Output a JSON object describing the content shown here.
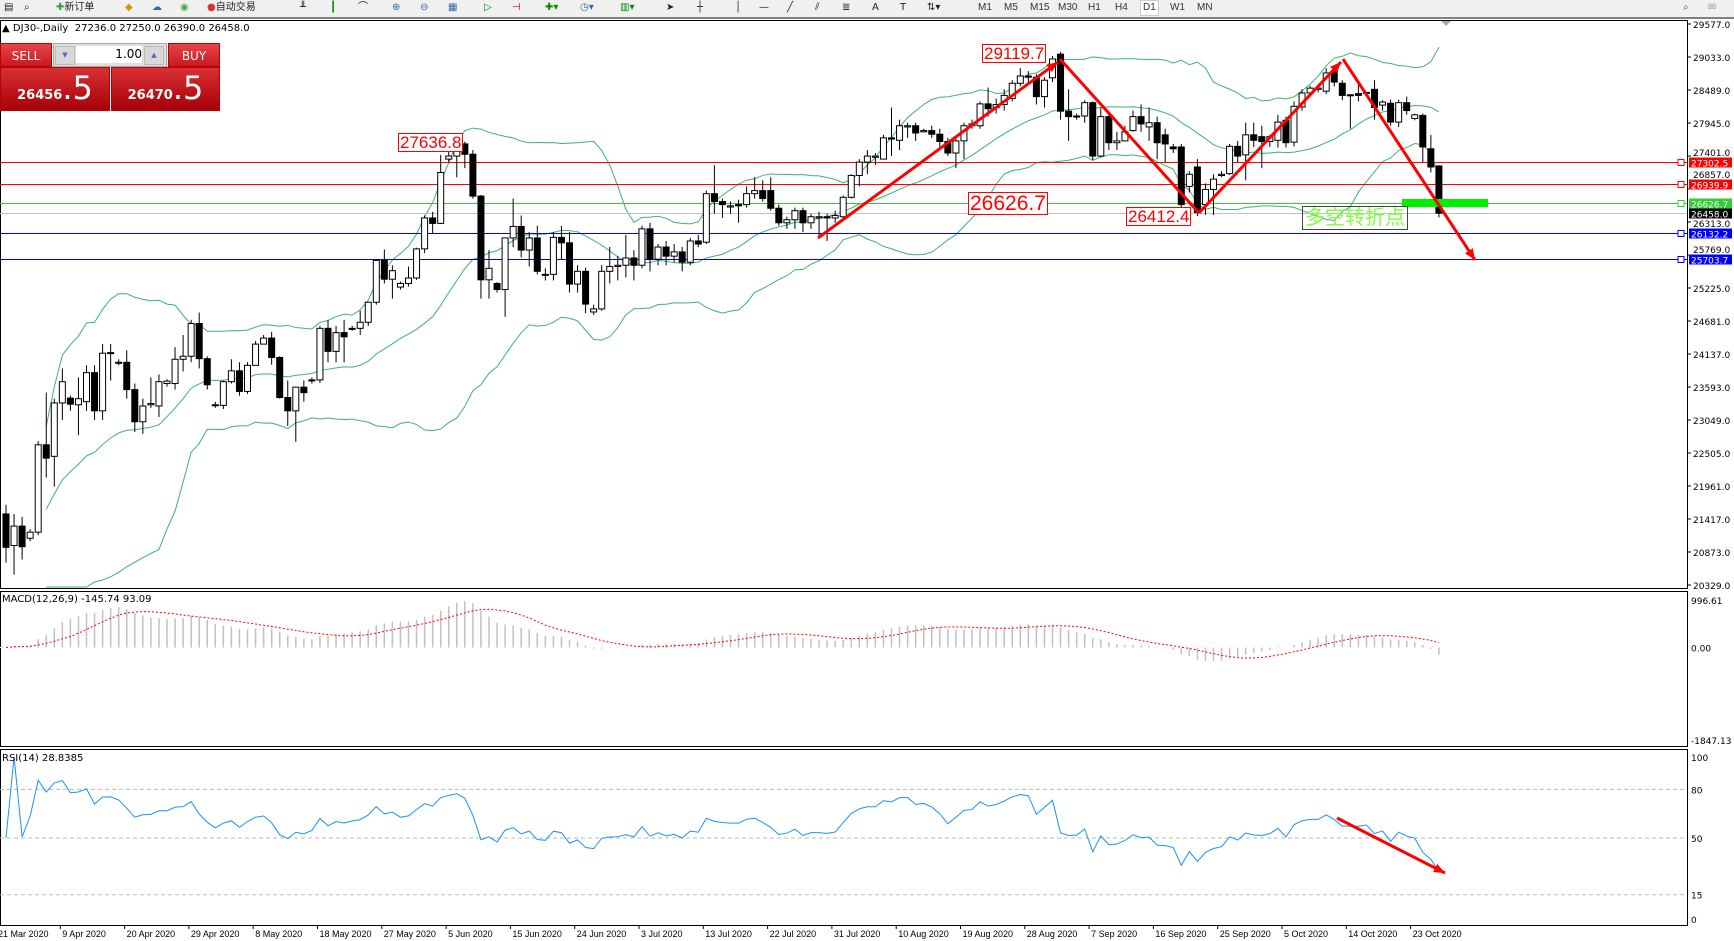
{
  "toolbar": {
    "new_order": "新订单",
    "auto_trading": "自动交易",
    "timeframes": [
      "M1",
      "M5",
      "M15",
      "M30",
      "H1",
      "H4",
      "D1",
      "W1",
      "MN"
    ],
    "active_timeframe": "D1"
  },
  "chart_header": {
    "symbol": "DJ30-,Daily",
    "ohlc": "27236.0 27250.0 26390.0 26458.0"
  },
  "trade_panel": {
    "sell_label": "SELL",
    "buy_label": "BUY",
    "lot": "1.00",
    "sell_price_main": "26456",
    "sell_price_big": ".5",
    "buy_price_main": "26470",
    "buy_price_big": ".5"
  },
  "annotations": {
    "peak1": "27636.8",
    "peak2": "29119.7",
    "level": "26626.7",
    "trough": "26412.4",
    "turning_point": "多空转折点"
  },
  "indicators": {
    "macd_label": "MACD(12,26,9) -145.74 93.09",
    "rsi_label": "RSI(14) 28.8385"
  },
  "chart_data": {
    "type": "candlestick",
    "price_axis_ticks": [
      "29577.0",
      "29033.0",
      "28489.0",
      "27945.0",
      "27401.0",
      "26857.0",
      "26313.0",
      "25769.0",
      "25225.0",
      "24681.0",
      "24137.0",
      "23593.0",
      "23049.0",
      "22505.0",
      "21961.0",
      "21417.0",
      "20873.0",
      "20329.0"
    ],
    "price_range": [
      20329.0,
      29577.0
    ],
    "macd_axis_ticks": [
      "996.61",
      "0.00",
      "-1847.13"
    ],
    "macd_range": [
      -1847.13,
      996.61
    ],
    "rsi_axis_ticks": [
      "100",
      "80",
      "50",
      "15",
      "0"
    ],
    "date_labels": [
      "21 Mar 2020",
      "9 Apr 2020",
      "20 Apr 2020",
      "29 Apr 2020",
      "8 May 2020",
      "18 May 2020",
      "27 May 2020",
      "5 Jun 2020",
      "15 Jun 2020",
      "24 Jun 2020",
      "3 Jul 2020",
      "13 Jul 2020",
      "22 Jul 2020",
      "31 Jul 2020",
      "10 Aug 2020",
      "19 Aug 2020",
      "28 Aug 2020",
      "7 Sep 2020",
      "16 Sep 2020",
      "25 Sep 2020",
      "5 Oct 2020",
      "14 Oct 2020",
      "23 Oct 2020"
    ],
    "horizontal_levels": [
      {
        "price": 27302.5,
        "label": "27302.5",
        "color": "#ff0000"
      },
      {
        "price": 26939.9,
        "label": "26939.9",
        "color": "#ff0000"
      },
      {
        "price": 26626.7,
        "label": "26626.7",
        "color": "#33cc33"
      },
      {
        "price": 26458.0,
        "label": "26458.0",
        "color": "#000000"
      },
      {
        "price": 26132.2,
        "label": "26132.2",
        "color": "#0000ff"
      },
      {
        "price": 25703.7,
        "label": "25703.7",
        "color": "#0000ff"
      }
    ],
    "colors": {
      "bull": "#ffffff",
      "bear": "#000000",
      "bollinger": "#3cb371",
      "macd_hist": "#c0c0c0",
      "macd_signal": "#ff0000",
      "rsi": "#1e90ff",
      "arrow": "#ff0000",
      "turning_bar": "#00ee00"
    },
    "indicators": {
      "bollinger": [
        20,
        2
      ],
      "macd": [
        12,
        26,
        9
      ],
      "rsi": 14,
      "rsi_levels": [
        80,
        50,
        15
      ]
    },
    "candles_ohlc": [
      [
        21500,
        21650,
        20700,
        20950
      ],
      [
        20980,
        21500,
        20500,
        21300
      ],
      [
        21300,
        21450,
        20750,
        20960
      ],
      [
        21100,
        21250,
        21050,
        21200
      ],
      [
        21200,
        22700,
        21150,
        22640
      ],
      [
        22640,
        23500,
        22100,
        22420
      ],
      [
        22450,
        23400,
        21950,
        23330
      ],
      [
        23330,
        23900,
        23050,
        23680
      ],
      [
        23410,
        23450,
        23200,
        23310
      ],
      [
        23300,
        23750,
        22800,
        23400
      ],
      [
        23350,
        23950,
        23200,
        23830
      ],
      [
        23830,
        23950,
        23050,
        23200
      ],
      [
        23200,
        24300,
        23050,
        24150
      ],
      [
        24150,
        24300,
        23700,
        24160
      ],
      [
        24000,
        24050,
        23950,
        24000
      ],
      [
        24000,
        24200,
        23400,
        23550
      ],
      [
        23550,
        23650,
        22850,
        23020
      ],
      [
        23020,
        23400,
        22820,
        23280
      ],
      [
        23300,
        23750,
        23250,
        23320
      ],
      [
        23280,
        23800,
        23100,
        23680
      ],
      [
        23650,
        23720,
        23600,
        23690
      ],
      [
        23650,
        24250,
        23550,
        24050
      ],
      [
        24050,
        24450,
        23850,
        24100
      ],
      [
        24100,
        24700,
        24000,
        24640
      ],
      [
        24640,
        24820,
        23900,
        24060
      ],
      [
        24060,
        24100,
        23550,
        23630
      ],
      [
        23300,
        23350,
        23250,
        23300
      ],
      [
        23290,
        23700,
        23230,
        23680
      ],
      [
        23680,
        24050,
        23650,
        23860
      ],
      [
        23860,
        24000,
        23450,
        23520
      ],
      [
        23520,
        24000,
        23480,
        23950
      ],
      [
        23950,
        24350,
        23950,
        24300
      ],
      [
        24300,
        24450,
        24300,
        24400
      ],
      [
        24400,
        24500,
        23960,
        24080
      ],
      [
        24080,
        24100,
        23400,
        23420
      ],
      [
        23420,
        23700,
        22950,
        23200
      ],
      [
        23200,
        23600,
        22690,
        23590
      ],
      [
        23590,
        23700,
        23350,
        23500
      ],
      [
        23700,
        23750,
        23650,
        23710
      ],
      [
        23710,
        24600,
        23660,
        24560
      ],
      [
        24560,
        24700,
        24000,
        24180
      ],
      [
        24180,
        24600,
        24000,
        24490
      ],
      [
        24490,
        24700,
        24000,
        24420
      ],
      [
        24560,
        24600,
        24520,
        24560
      ],
      [
        24560,
        24850,
        24450,
        24660
      ],
      [
        24660,
        25000,
        24600,
        24990
      ],
      [
        24990,
        25700,
        24950,
        25680
      ],
      [
        25680,
        25860,
        25300,
        25370
      ],
      [
        25370,
        25600,
        25050,
        25510
      ],
      [
        25240,
        25330,
        25200,
        25300
      ],
      [
        25300,
        25580,
        25250,
        25390
      ],
      [
        25390,
        25890,
        25360,
        25870
      ],
      [
        25870,
        26420,
        25800,
        26380
      ],
      [
        26380,
        26480,
        26120,
        26290
      ],
      [
        26290,
        27420,
        26280,
        27130
      ],
      [
        27350,
        27500,
        27300,
        27400
      ],
      [
        27400,
        27600,
        27050,
        27590
      ],
      [
        27600,
        27636.8,
        27200,
        27430
      ],
      [
        27430,
        27500,
        26700,
        26740
      ],
      [
        26740,
        26760,
        25050,
        25360
      ],
      [
        25360,
        25850,
        25050,
        25550
      ],
      [
        25300,
        25320,
        25150,
        25200
      ],
      [
        25200,
        26050,
        24750,
        26050
      ],
      [
        26050,
        26700,
        25900,
        26240
      ],
      [
        26240,
        26420,
        25730,
        25850
      ],
      [
        25850,
        26150,
        25580,
        26050
      ],
      [
        26050,
        26250,
        25450,
        25500
      ],
      [
        25450,
        25550,
        25350,
        25450
      ],
      [
        25450,
        26150,
        25350,
        26060
      ],
      [
        26060,
        26250,
        25700,
        25970
      ],
      [
        25970,
        26150,
        25150,
        25290
      ],
      [
        25290,
        25600,
        25150,
        25500
      ],
      [
        25500,
        25560,
        24810,
        24960
      ],
      [
        24830,
        24950,
        24780,
        24880
      ],
      [
        24880,
        25600,
        24850,
        25500
      ],
      [
        25500,
        25900,
        25300,
        25580
      ],
      [
        25580,
        25750,
        25350,
        25600
      ],
      [
        25600,
        26100,
        25400,
        25720
      ],
      [
        25720,
        25850,
        25350,
        25600
      ],
      [
        25600,
        26250,
        25550,
        26200
      ],
      [
        26200,
        26300,
        25500,
        25700
      ],
      [
        25700,
        25950,
        25600,
        25900
      ],
      [
        25900,
        26000,
        25600,
        25750
      ],
      [
        25750,
        25950,
        25650,
        25820
      ],
      [
        25820,
        25900,
        25500,
        25650
      ],
      [
        25650,
        26050,
        25600,
        26000
      ],
      [
        26000,
        26100,
        25900,
        25950
      ],
      [
        25980,
        26830,
        25950,
        26780
      ],
      [
        26780,
        27250,
        26450,
        26650
      ],
      [
        26650,
        26700,
        26380,
        26600
      ],
      [
        26560,
        26650,
        26450,
        26580
      ],
      [
        26600,
        26680,
        26300,
        26580
      ],
      [
        26600,
        26900,
        26550,
        26780
      ],
      [
        26780,
        27050,
        26700,
        26830
      ],
      [
        26830,
        27000,
        26650,
        26700
      ],
      [
        26830,
        27050,
        26500,
        26540
      ],
      [
        26540,
        26600,
        26250,
        26300
      ],
      [
        26300,
        26400,
        26200,
        26350
      ],
      [
        26350,
        26550,
        26200,
        26500
      ],
      [
        26500,
        26550,
        26150,
        26300
      ],
      [
        26300,
        26450,
        26200,
        26400
      ],
      [
        26380,
        26480,
        26050,
        26400
      ],
      [
        26400,
        26450,
        26000,
        26380
      ],
      [
        26380,
        26500,
        26300,
        26420
      ],
      [
        26400,
        26750,
        26350,
        26720
      ],
      [
        26720,
        27100,
        26700,
        27080
      ],
      [
        27080,
        27350,
        26900,
        27300
      ],
      [
        27300,
        27500,
        27100,
        27400
      ],
      [
        27380,
        27450,
        27250,
        27400
      ],
      [
        27350,
        27750,
        27350,
        27700
      ],
      [
        27700,
        28200,
        27400,
        27680
      ],
      [
        27660,
        28000,
        27500,
        27900
      ],
      [
        27880,
        27950,
        27700,
        27900
      ],
      [
        27900,
        27950,
        27650,
        27780
      ],
      [
        27800,
        27850,
        27790,
        27820
      ],
      [
        27820,
        27900,
        27700,
        27760
      ],
      [
        27760,
        27850,
        27550,
        27640
      ],
      [
        27640,
        27700,
        27400,
        27450
      ],
      [
        27450,
        27700,
        27200,
        27650
      ],
      [
        27650,
        27950,
        27350,
        27900
      ],
      [
        27900,
        28000,
        27850,
        27930
      ],
      [
        27900,
        28300,
        27850,
        28260
      ],
      [
        28260,
        28530,
        28050,
        28180
      ],
      [
        28200,
        28350,
        28100,
        28250
      ],
      [
        28250,
        28500,
        28150,
        28400
      ],
      [
        28350,
        28650,
        28300,
        28600
      ],
      [
        28600,
        28850,
        28550,
        28720
      ],
      [
        28720,
        28800,
        28600,
        28700
      ],
      [
        28700,
        28750,
        28250,
        28380
      ],
      [
        28380,
        28700,
        28200,
        28650
      ],
      [
        28690,
        29050,
        28620,
        29000
      ],
      [
        29080,
        29119.7,
        28000,
        28140
      ],
      [
        28140,
        28500,
        27650,
        28050
      ],
      [
        28050,
        28100,
        28000,
        28060
      ],
      [
        28060,
        28320,
        27950,
        28280
      ],
      [
        28280,
        28300,
        27330,
        27400
      ],
      [
        27400,
        28200,
        27380,
        28050
      ],
      [
        28050,
        28100,
        27500,
        27620
      ],
      [
        27620,
        27800,
        27500,
        27650
      ],
      [
        27650,
        27900,
        27700,
        27800
      ],
      [
        27820,
        28150,
        27800,
        28050
      ],
      [
        28050,
        28250,
        27800,
        27930
      ],
      [
        27880,
        28200,
        27650,
        27950
      ],
      [
        27950,
        28050,
        27350,
        27620
      ],
      [
        27750,
        27850,
        27300,
        27600
      ],
      [
        27550,
        27600,
        27450,
        27520
      ],
      [
        27550,
        27600,
        26480,
        26600
      ],
      [
        26900,
        27150,
        26800,
        27100
      ],
      [
        27220,
        27350,
        26412.4,
        26470
      ],
      [
        26600,
        26950,
        26430,
        26850
      ],
      [
        26850,
        27100,
        26430,
        27020
      ],
      [
        27080,
        27150,
        27050,
        27100
      ],
      [
        27110,
        27600,
        27090,
        27560
      ],
      [
        27560,
        27650,
        27300,
        27400
      ],
      [
        27420,
        27950,
        27000,
        27750
      ],
      [
        27750,
        27950,
        27550,
        27660
      ],
      [
        27720,
        27900,
        27200,
        27640
      ],
      [
        27640,
        27750,
        27550,
        27720
      ],
      [
        27660,
        28080,
        27540,
        27960
      ],
      [
        27990,
        28050,
        27540,
        27620
      ],
      [
        27630,
        28300,
        27560,
        28220
      ],
      [
        28210,
        28500,
        28150,
        28440
      ],
      [
        28440,
        28560,
        28420,
        28520
      ],
      [
        28500,
        28550,
        28450,
        28520
      ],
      [
        28470,
        28850,
        28420,
        28770
      ],
      [
        28800,
        28850,
        28550,
        28620
      ],
      [
        28600,
        28650,
        28320,
        28400
      ],
      [
        28400,
        28420,
        27850,
        28410
      ],
      [
        28430,
        28580,
        28300,
        28400
      ],
      [
        28450,
        28460,
        28440,
        28450
      ],
      [
        28500,
        28650,
        28000,
        28200
      ],
      [
        28240,
        28320,
        28150,
        28290
      ],
      [
        28270,
        28330,
        27900,
        27960
      ],
      [
        27960,
        28330,
        27880,
        28280
      ],
      [
        28280,
        28380,
        28080,
        28150
      ],
      [
        28020,
        28100,
        27990,
        28080
      ],
      [
        28070,
        28100,
        27300,
        27550
      ],
      [
        27520,
        27750,
        27130,
        27220
      ],
      [
        27236,
        27250,
        26390,
        26458
      ]
    ]
  }
}
